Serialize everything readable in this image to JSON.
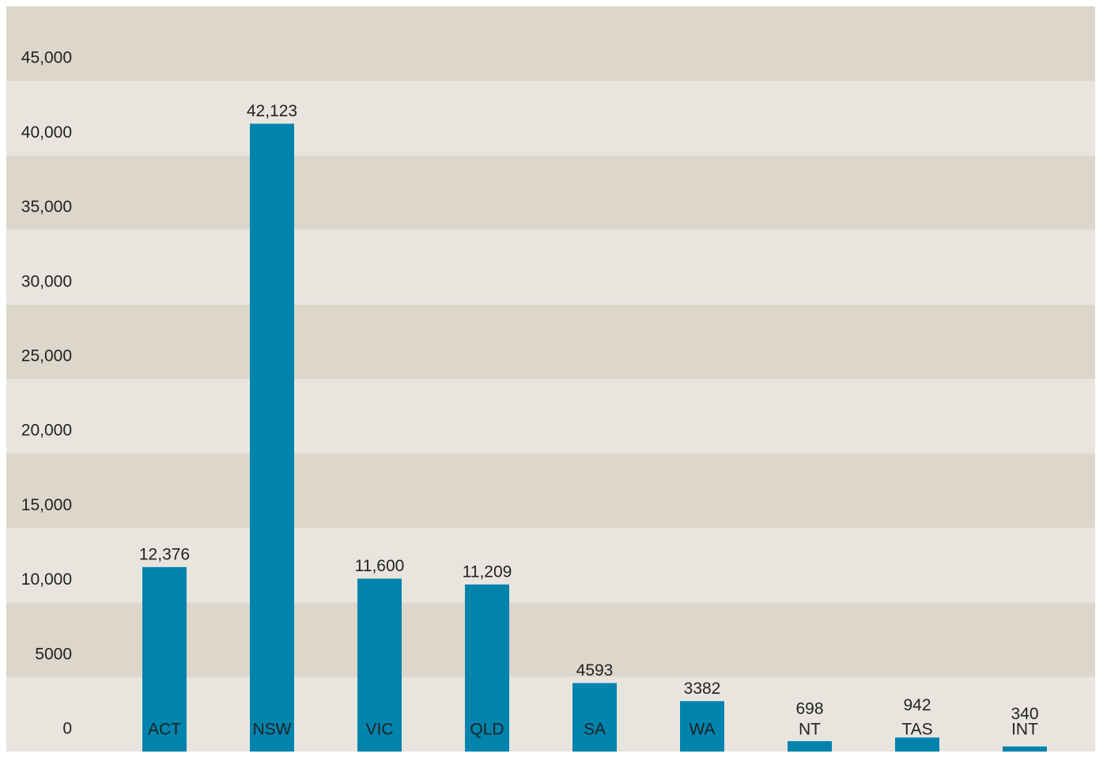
{
  "chart_data": {
    "type": "bar",
    "categories": [
      "ACT",
      "NSW",
      "VIC",
      "QLD",
      "SA",
      "WA",
      "NT",
      "TAS",
      "INT"
    ],
    "values": [
      12376,
      42123,
      11600,
      11209,
      4593,
      3382,
      698,
      942,
      340
    ],
    "value_labels": [
      "12,376",
      "42,123",
      "11,600",
      "11,209",
      "4593",
      "3382",
      "698",
      "942",
      "340"
    ],
    "color": "#0083ad",
    "ylim": [
      0,
      50000
    ],
    "yticks": [
      0,
      5000,
      {
        "value": 10000,
        "label": "10,000"
      },
      {
        "value": 15000,
        "label": "15,000"
      },
      {
        "value": 20000,
        "label": "20,000"
      },
      {
        "value": 25000,
        "label": "25,000"
      },
      {
        "value": 30000,
        "label": "30,000"
      },
      {
        "value": 35000,
        "label": "35,000"
      },
      {
        "value": 40000,
        "label": "40,000"
      },
      {
        "value": 45000,
        "label": "45,000"
      }
    ],
    "band_colors": [
      "#e8e5df",
      "#ddd6cb"
    ]
  }
}
